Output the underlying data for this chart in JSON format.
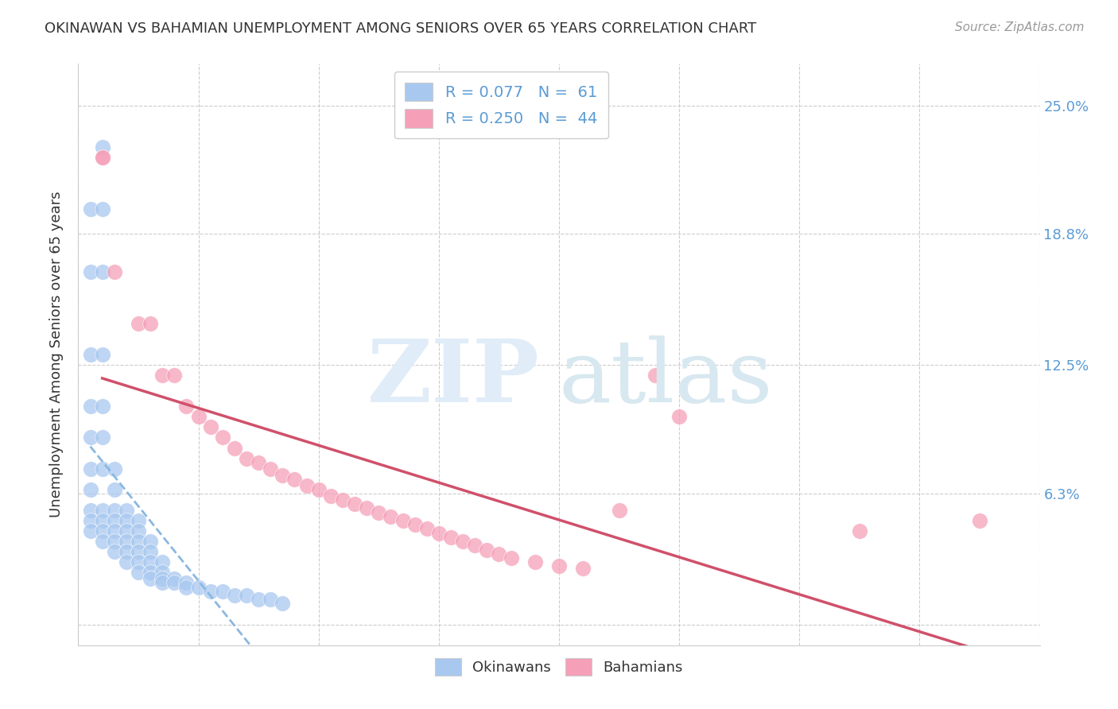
{
  "title": "OKINAWAN VS BAHAMIAN UNEMPLOYMENT AMONG SENIORS OVER 65 YEARS CORRELATION CHART",
  "source": "Source: ZipAtlas.com",
  "ylabel": "Unemployment Among Seniors over 65 years",
  "xlim": [
    0.0,
    0.08
  ],
  "ylim": [
    -0.01,
    0.27
  ],
  "okinawan_color": "#a8c8f0",
  "bahamian_color": "#f5a0b8",
  "trendline_okinawan_color": "#5b9bd5",
  "trendline_bahamian_color": "#e05575",
  "background_color": "#ffffff",
  "okinawan_x": [
    0.001,
    0.002,
    0.001,
    0.002,
    0.001,
    0.002,
    0.001,
    0.002,
    0.001,
    0.002,
    0.001,
    0.002,
    0.003,
    0.001,
    0.003,
    0.001,
    0.002,
    0.003,
    0.004,
    0.001,
    0.002,
    0.003,
    0.004,
    0.005,
    0.001,
    0.002,
    0.003,
    0.004,
    0.005,
    0.002,
    0.003,
    0.004,
    0.005,
    0.006,
    0.003,
    0.004,
    0.005,
    0.006,
    0.004,
    0.005,
    0.006,
    0.007,
    0.005,
    0.006,
    0.007,
    0.006,
    0.007,
    0.008,
    0.007,
    0.008,
    0.009,
    0.009,
    0.01,
    0.011,
    0.012,
    0.013,
    0.014,
    0.015,
    0.016,
    0.017,
    0.002
  ],
  "okinawan_y": [
    0.2,
    0.2,
    0.17,
    0.17,
    0.13,
    0.13,
    0.105,
    0.105,
    0.09,
    0.09,
    0.075,
    0.075,
    0.075,
    0.065,
    0.065,
    0.055,
    0.055,
    0.055,
    0.055,
    0.05,
    0.05,
    0.05,
    0.05,
    0.05,
    0.045,
    0.045,
    0.045,
    0.045,
    0.045,
    0.04,
    0.04,
    0.04,
    0.04,
    0.04,
    0.035,
    0.035,
    0.035,
    0.035,
    0.03,
    0.03,
    0.03,
    0.03,
    0.025,
    0.025,
    0.025,
    0.022,
    0.022,
    0.022,
    0.02,
    0.02,
    0.02,
    0.018,
    0.018,
    0.016,
    0.016,
    0.014,
    0.014,
    0.012,
    0.012,
    0.01,
    0.23
  ],
  "bahamian_x": [
    0.002,
    0.002,
    0.003,
    0.005,
    0.006,
    0.007,
    0.008,
    0.009,
    0.01,
    0.011,
    0.012,
    0.013,
    0.014,
    0.015,
    0.016,
    0.017,
    0.018,
    0.019,
    0.02,
    0.021,
    0.022,
    0.023,
    0.024,
    0.025,
    0.026,
    0.027,
    0.028,
    0.029,
    0.03,
    0.031,
    0.032,
    0.033,
    0.034,
    0.035,
    0.036,
    0.038,
    0.04,
    0.042,
    0.045,
    0.048,
    0.05,
    0.065,
    0.075
  ],
  "bahamian_y": [
    0.225,
    0.225,
    0.17,
    0.145,
    0.145,
    0.12,
    0.12,
    0.105,
    0.1,
    0.095,
    0.09,
    0.085,
    0.08,
    0.078,
    0.075,
    0.072,
    0.07,
    0.067,
    0.065,
    0.062,
    0.06,
    0.058,
    0.056,
    0.054,
    0.052,
    0.05,
    0.048,
    0.046,
    0.044,
    0.042,
    0.04,
    0.038,
    0.036,
    0.034,
    0.032,
    0.03,
    0.028,
    0.027,
    0.055,
    0.12,
    0.1,
    0.045,
    0.05
  ]
}
